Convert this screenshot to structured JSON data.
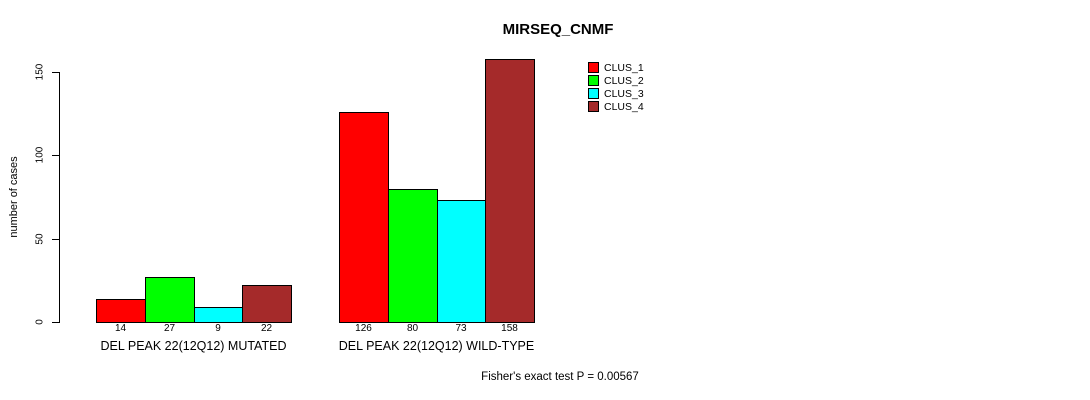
{
  "title": "MIRSEQ_CNMF",
  "y_axis": {
    "label": "number of cases",
    "ticks": [
      "0",
      "50",
      "100",
      "150"
    ]
  },
  "footer": "Fisher's exact test P = 0.00567",
  "chart_data": {
    "type": "bar",
    "title": "MIRSEQ_CNMF",
    "xlabel": "",
    "ylabel": "number of cases",
    "ylim": [
      0,
      158
    ],
    "yticks": [
      0,
      50,
      100,
      150
    ],
    "grid": false,
    "legend_position": "top-right",
    "bar_value_labels": true,
    "categories": [
      "DEL PEAK 22(12Q12) MUTATED",
      "DEL PEAK 22(12Q12) WILD-TYPE"
    ],
    "series": [
      {
        "name": "CLUS_1",
        "color": "#FF0000",
        "values": [
          14,
          126
        ]
      },
      {
        "name": "CLUS_2",
        "color": "#00FF00",
        "values": [
          27,
          80
        ]
      },
      {
        "name": "CLUS_3",
        "color": "#00FFFF",
        "values": [
          9,
          73
        ]
      },
      {
        "name": "CLUS_4",
        "color": "#A52A2A",
        "values": [
          22,
          158
        ]
      }
    ],
    "annotation": "Fisher's exact test P = 0.00567"
  }
}
